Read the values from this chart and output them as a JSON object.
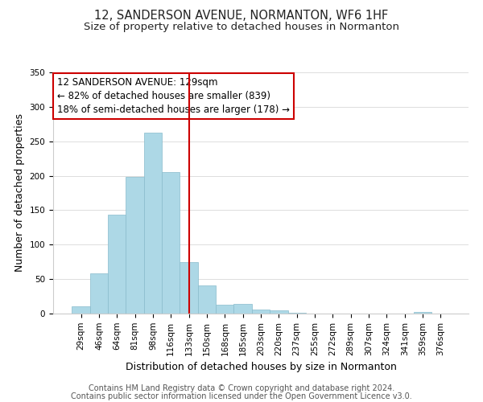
{
  "title": "12, SANDERSON AVENUE, NORMANTON, WF6 1HF",
  "subtitle": "Size of property relative to detached houses in Normanton",
  "xlabel": "Distribution of detached houses by size in Normanton",
  "ylabel": "Number of detached properties",
  "bar_labels": [
    "29sqm",
    "46sqm",
    "64sqm",
    "81sqm",
    "98sqm",
    "116sqm",
    "133sqm",
    "150sqm",
    "168sqm",
    "185sqm",
    "203sqm",
    "220sqm",
    "237sqm",
    "255sqm",
    "272sqm",
    "289sqm",
    "307sqm",
    "324sqm",
    "341sqm",
    "359sqm",
    "376sqm"
  ],
  "bar_values": [
    10,
    58,
    143,
    198,
    263,
    205,
    75,
    41,
    13,
    14,
    6,
    5,
    1,
    0,
    0,
    0,
    0,
    0,
    0,
    2,
    0
  ],
  "bar_color": "#add8e6",
  "bar_edge_color": "#88bbcc",
  "highlight_line_color": "#cc0000",
  "ylim": [
    0,
    350
  ],
  "yticks": [
    0,
    50,
    100,
    150,
    200,
    250,
    300,
    350
  ],
  "annotation_title": "12 SANDERSON AVENUE: 129sqm",
  "annotation_line1": "← 82% of detached houses are smaller (839)",
  "annotation_line2": "18% of semi-detached houses are larger (178) →",
  "annotation_box_color": "#ffffff",
  "annotation_box_edge": "#cc0000",
  "footer_line1": "Contains HM Land Registry data © Crown copyright and database right 2024.",
  "footer_line2": "Contains public sector information licensed under the Open Government Licence v3.0.",
  "background_color": "#ffffff",
  "grid_color": "#dddddd",
  "title_fontsize": 10.5,
  "subtitle_fontsize": 9.5,
  "axis_label_fontsize": 9,
  "tick_fontsize": 7.5,
  "annotation_fontsize": 8.5,
  "footer_fontsize": 7
}
